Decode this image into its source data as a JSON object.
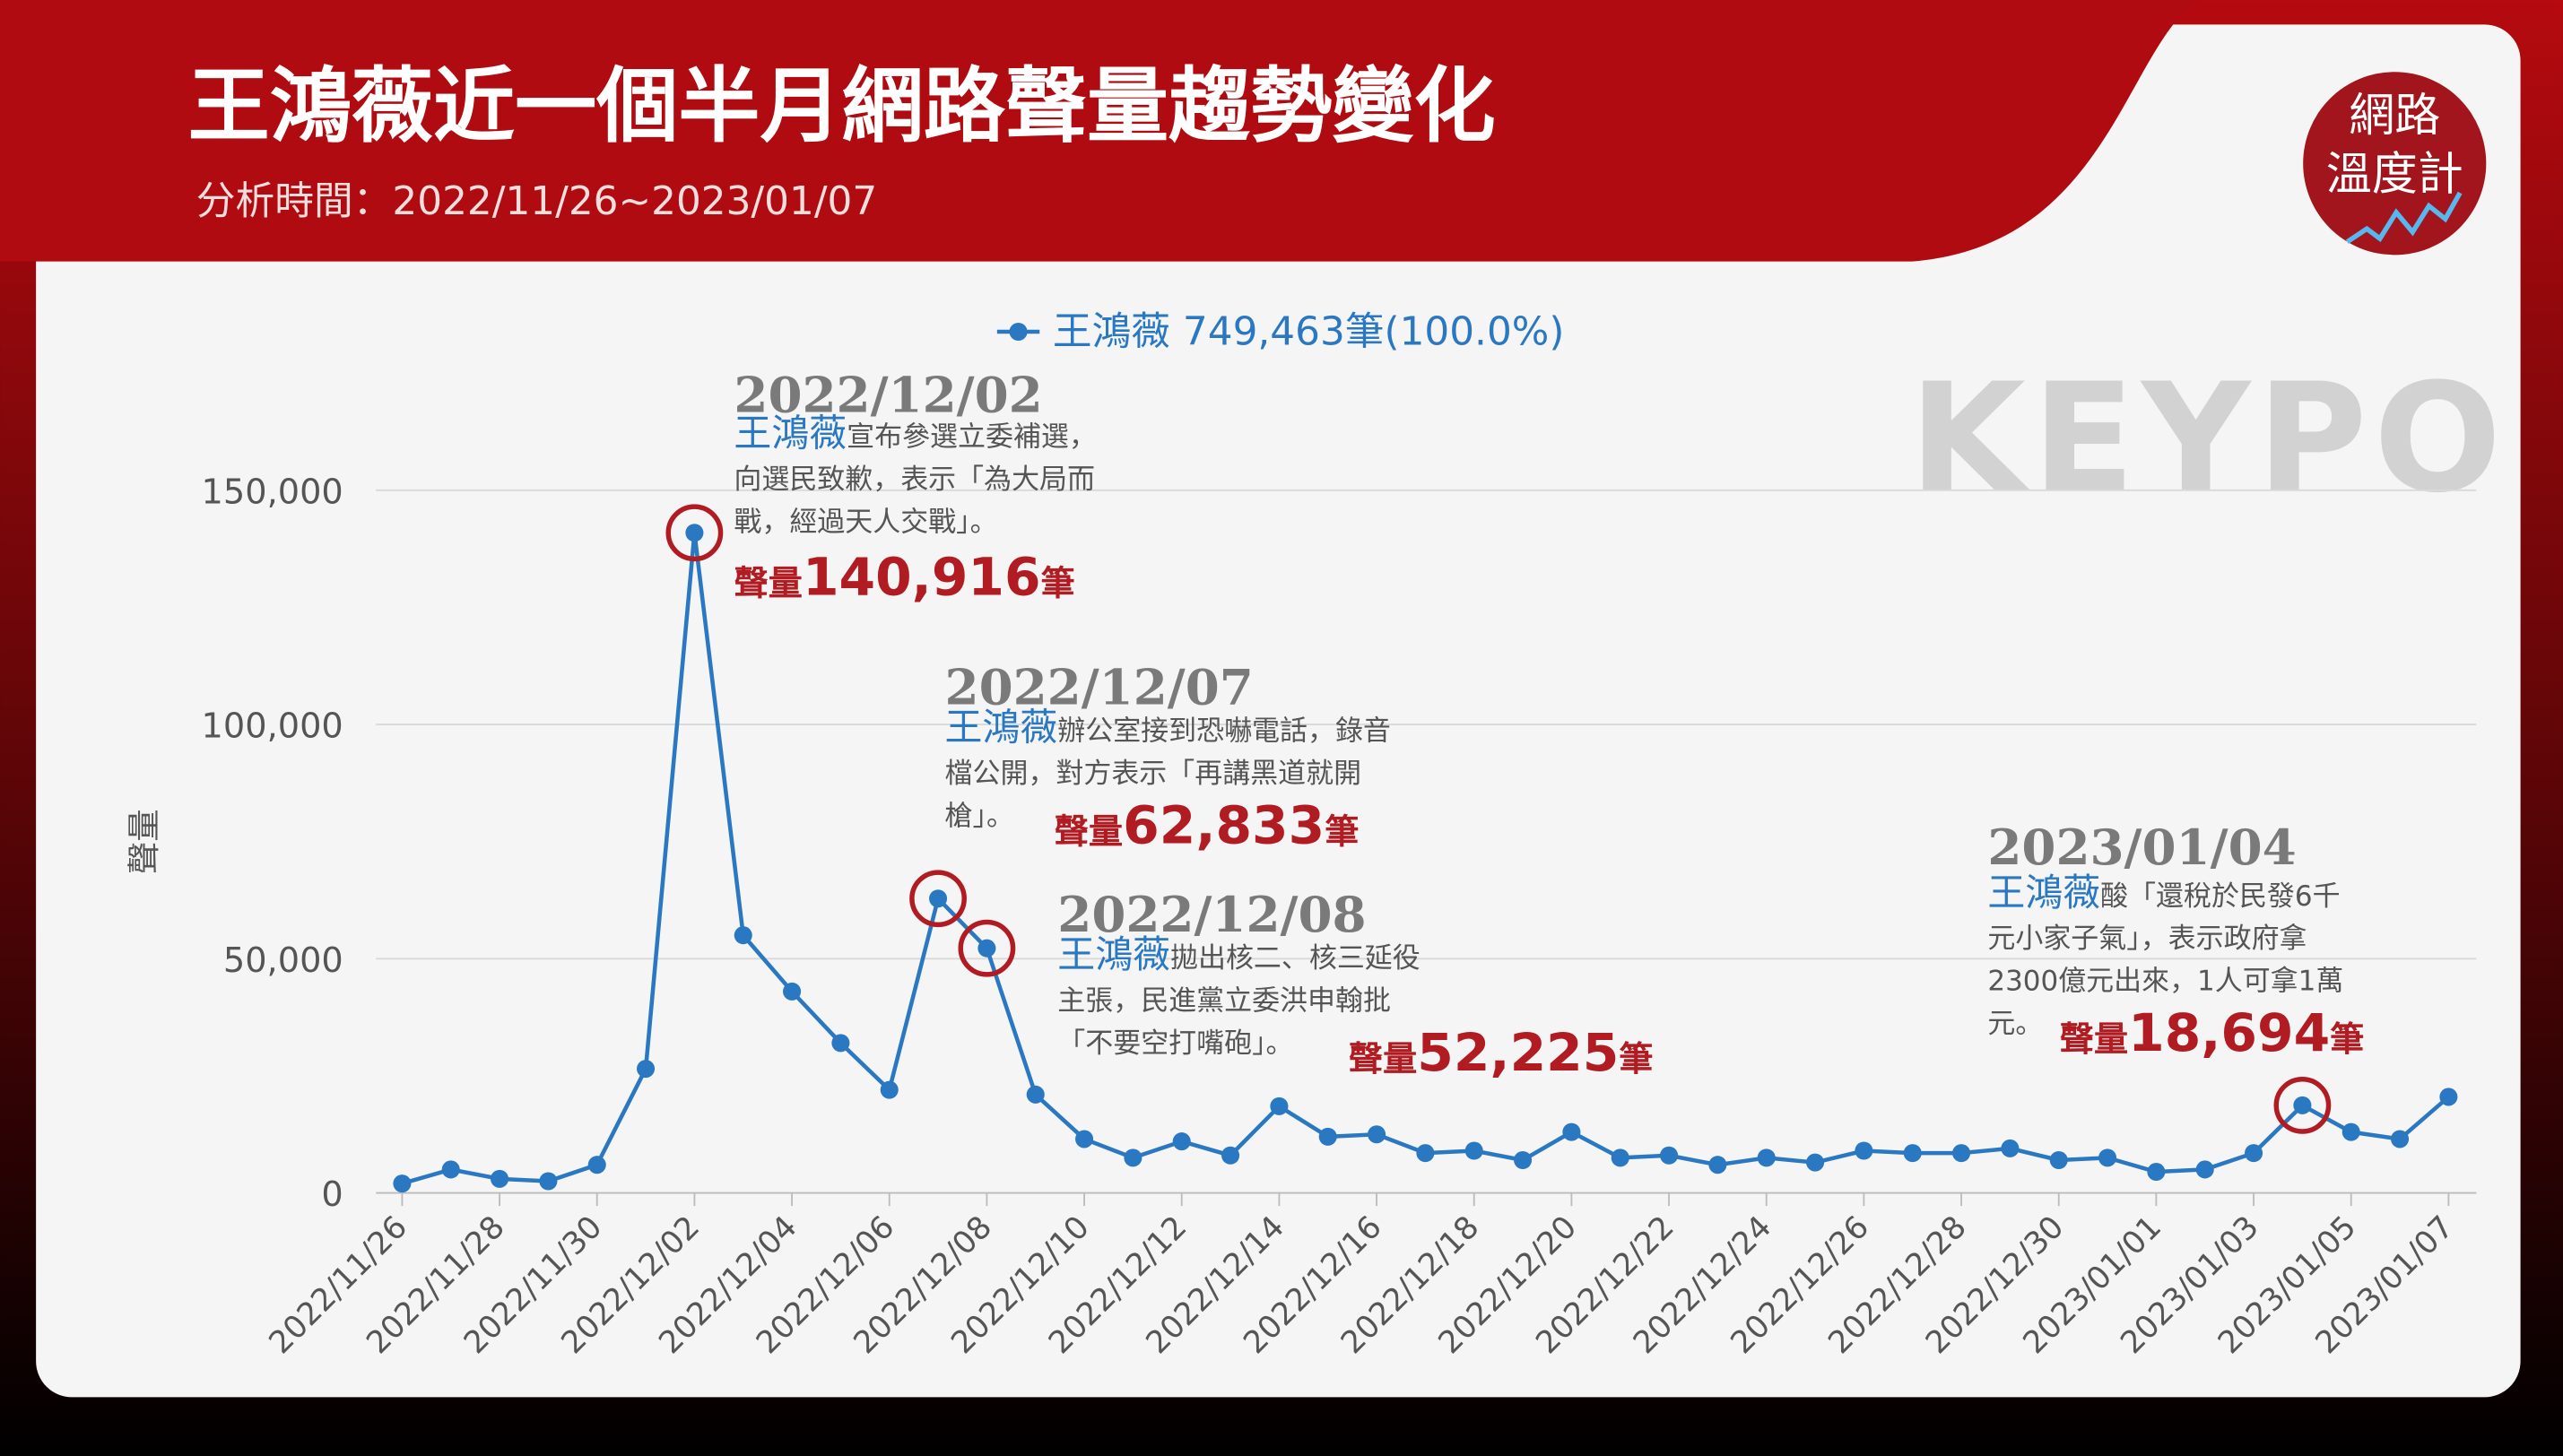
{
  "header": {
    "title": "王鴻薇近一個半月網路聲量趨勢變化",
    "subtitle": "分析時間：2022/11/26~2023/01/07"
  },
  "logo": {
    "line1": "網路",
    "line2": "溫度計"
  },
  "watermark": "KEYPO",
  "chart_data": {
    "type": "line",
    "y_label": "聲量",
    "categories": [
      "2022/11/26",
      null,
      "2022/11/28",
      null,
      "2022/11/30",
      null,
      "2022/12/02",
      null,
      "2022/12/04",
      null,
      "2022/12/06",
      null,
      "2022/12/08",
      null,
      "2022/12/10",
      null,
      "2022/12/12",
      null,
      "2022/12/14",
      null,
      "2022/12/16",
      null,
      "2022/12/18",
      null,
      "2022/12/20",
      null,
      "2022/12/22",
      null,
      "2022/12/24",
      null,
      "2022/12/26",
      null,
      "2022/12/28",
      null,
      "2022/12/30",
      null,
      "2023/01/01",
      null,
      "2023/01/03",
      null,
      "2023/01/05",
      null,
      "2023/01/07"
    ],
    "series": [
      {
        "name": "王鴻薇 749,463筆(100.0%)",
        "color": "#2a78c2",
        "values": [
          2000,
          5000,
          3000,
          2500,
          6000,
          26500,
          140916,
          55000,
          43000,
          32000,
          22000,
          62833,
          52225,
          21000,
          11500,
          7500,
          11000,
          8000,
          18500,
          12000,
          12500,
          8500,
          9000,
          7000,
          13000,
          7500,
          8000,
          6000,
          7500,
          6500,
          9000,
          8500,
          8500,
          9500,
          7000,
          7500,
          4500,
          5000,
          8500,
          18694,
          13000,
          11500,
          20500
        ],
        "value_labels": [
          null,
          null,
          null,
          null,
          null,
          null,
          "140,916",
          null,
          null,
          null,
          null,
          "62,833",
          "52,225",
          null,
          null,
          null,
          null,
          null,
          null,
          null,
          null,
          null,
          null,
          null,
          null,
          null,
          null,
          null,
          null,
          null,
          null,
          null,
          null,
          null,
          null,
          null,
          null,
          null,
          null,
          "18,694",
          null,
          null,
          null
        ]
      }
    ],
    "ylim": [
      0,
      150000
    ],
    "yticks": [
      0,
      {
        "value": 50000,
        "label": "50,000"
      },
      {
        "value": 100000,
        "label": "100,000"
      },
      {
        "value": 150000,
        "label": "150,000"
      }
    ],
    "grid": true,
    "highlight_color": "#b01c22",
    "annotations": [
      {
        "date": "2022/12/02",
        "name": "王鴻薇",
        "lines": [
          "宣布參選立委補選，",
          "向選民致歉，表示「為大局而",
          "戰，經過天人交戰」。"
        ],
        "prefix": "聲量",
        "suffix": "筆"
      },
      {
        "date": "2022/12/07",
        "name": "王鴻薇",
        "lines": [
          "辦公室接到恐嚇電話，錄音",
          "檔公開，對方表示「再講黑道就開",
          "槍」。"
        ],
        "prefix": "聲量",
        "suffix": "筆"
      },
      {
        "date": "2022/12/08",
        "name": "王鴻薇",
        "lines": [
          "拋出核二、核三延役",
          "主張，民進黨立委洪申翰批",
          "「不要空打嘴砲」。"
        ],
        "prefix": "聲量",
        "suffix": "筆"
      },
      {
        "date": "2023/01/04",
        "name": "王鴻薇",
        "lines": [
          "酸「還稅於民發6千",
          "元小家子氣」，表示政府拿",
          "2300億元出來，1人可拿1萬",
          "元。"
        ],
        "prefix": "聲量",
        "suffix": "筆"
      }
    ]
  }
}
